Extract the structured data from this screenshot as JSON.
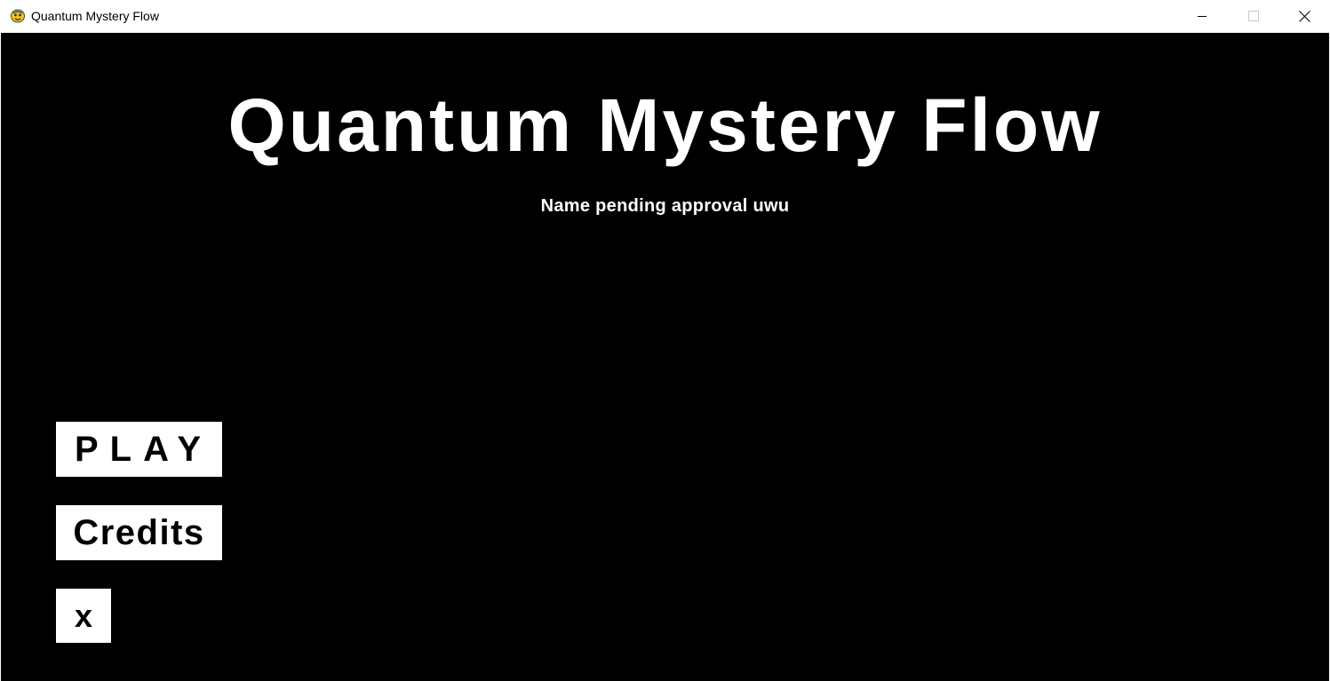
{
  "window": {
    "title": "Quantum Mystery Flow",
    "icon": "pygame-snake-icon",
    "controls": {
      "minimize_icon": "minimize-icon",
      "maximize_icon": "maximize-icon",
      "close_icon": "close-icon"
    }
  },
  "game": {
    "title": "Quantum Mystery Flow",
    "subtitle": "Name pending approval uwu",
    "background_color": "#000000",
    "text_color": "#ffffff"
  },
  "menu": {
    "play_label": "PLAY",
    "credits_label": "Credits",
    "exit_label": "x",
    "button_color": "#ffffff",
    "button_text_color": "#000000"
  }
}
